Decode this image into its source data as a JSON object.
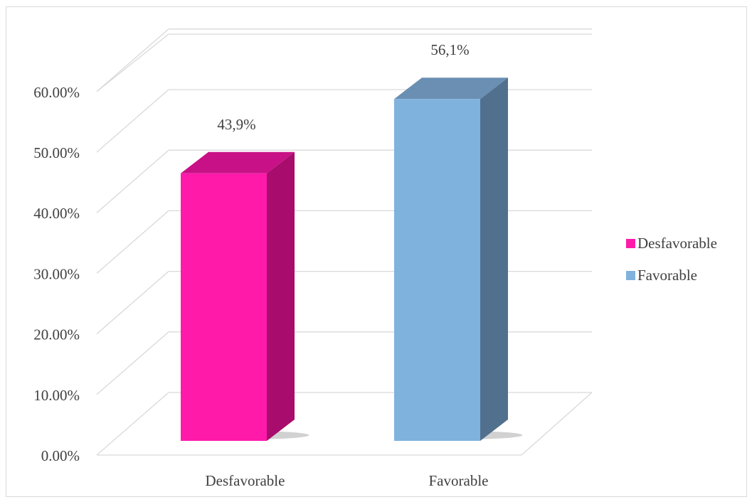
{
  "chart_data": {
    "type": "bar",
    "categories": [
      "Desfavorable",
      "Favorable"
    ],
    "values": [
      43.9,
      56.1
    ],
    "data_labels": [
      "43,9%",
      "56,1%"
    ],
    "ylim": [
      0,
      60
    ],
    "yticks": [
      0,
      10,
      20,
      30,
      40,
      50,
      60
    ],
    "ytick_labels": [
      "0.00%",
      "10.00%",
      "20.00%",
      "30.00%",
      "40.00%",
      "50.00%",
      "60.00%"
    ],
    "title": "",
    "xlabel": "",
    "ylabel": "",
    "grid": true,
    "three_d": true,
    "legend_position": "right",
    "legend": [
      {
        "label": "Desfavorable",
        "color": "#ff1aaa"
      },
      {
        "label": "Favorable",
        "color": "#80b2de"
      }
    ],
    "colors": {
      "Desfavorable": {
        "front": "#ff1aaa",
        "side": "#a80c6c",
        "top": "#c81186"
      },
      "Favorable": {
        "front": "#80b2de",
        "side": "#51708e",
        "top": "#6a8fb3"
      }
    }
  }
}
